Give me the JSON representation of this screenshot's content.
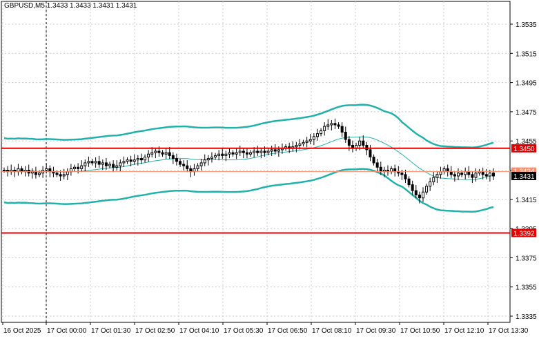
{
  "header": {
    "symbol": "GBPUSD,M5",
    "ohlc": "1.3433 1.3433 1.3431 1.3431"
  },
  "colors": {
    "background": "#ffffff",
    "grid": "#c8c8c8",
    "candle": "#000000",
    "bollinger": "#20b2aa",
    "level_line": "#e00000",
    "bid_line": "#ff8c69",
    "label_text": "#ffffff",
    "current_label_bg": "#000000"
  },
  "chart_data": {
    "type": "candlestick",
    "title": "GBPUSD,M5",
    "y_range": [
      1.333,
      1.355
    ],
    "y_ticks": [
      "1.3535",
      "1.3515",
      "1.3495",
      "1.3475",
      "1.3455",
      "1.3435",
      "1.3415",
      "1.3395",
      "1.3375",
      "1.3355",
      "1.3335"
    ],
    "x_ticks": [
      "16 Oct 2025",
      "17 Oct 00:00",
      "17 Oct 01:30",
      "17 Oct 02:50",
      "17 Oct 04:10",
      "17 Oct 05:30",
      "17 Oct 06:50",
      "17 Oct 08:10",
      "17 Oct 09:30",
      "17 Oct 10:50",
      "17 Oct 12:10",
      "17 Oct 13:30"
    ],
    "period_separator": "17 Oct 00:00",
    "grid": true,
    "levels": [
      {
        "label": "1.3450",
        "value": 1.345
      },
      {
        "label": "1.3392",
        "value": 1.3392
      }
    ],
    "bid_line": {
      "label": "1.3434",
      "value": 1.3434
    },
    "current_price": {
      "label": "1.3431",
      "value": 1.3431
    },
    "close": [
      1.3435,
      1.3434,
      1.3435,
      1.3434,
      1.3436,
      1.3434,
      1.3435,
      1.3433,
      1.3434,
      1.3432,
      1.3433,
      1.3435,
      1.3436,
      1.3434,
      1.3433,
      1.3432,
      1.3431,
      1.3432,
      1.3434,
      1.3436,
      1.3437,
      1.3436,
      1.3438,
      1.344,
      1.3441,
      1.344,
      1.3441,
      1.3439,
      1.344,
      1.3438,
      1.3439,
      1.3437,
      1.3438,
      1.344,
      1.3441,
      1.3442,
      1.3441,
      1.3442,
      1.3443,
      1.3442,
      1.3444,
      1.3446,
      1.3447,
      1.3448,
      1.3447,
      1.3446,
      1.3447,
      1.3445,
      1.3443,
      1.3441,
      1.3439,
      1.3438,
      1.3436,
      1.3434,
      1.3436,
      1.3438,
      1.344,
      1.3442,
      1.3443,
      1.3444,
      1.3445,
      1.3446,
      1.3445,
      1.3446,
      1.3447,
      1.3446,
      1.3447,
      1.3448,
      1.3447,
      1.3446,
      1.3447,
      1.3448,
      1.3447,
      1.3448,
      1.3447,
      1.3448,
      1.3449,
      1.3448,
      1.3449,
      1.345,
      1.3451,
      1.345,
      1.3451,
      1.3452,
      1.3453,
      1.3454,
      1.3455,
      1.3456,
      1.3458,
      1.346,
      1.3462,
      1.3465,
      1.3466,
      1.3467,
      1.3466,
      1.3465,
      1.3461,
      1.3456,
      1.3452,
      1.345,
      1.3452,
      1.3455,
      1.3452,
      1.3449,
      1.3444,
      1.344,
      1.3437,
      1.3434,
      1.3435,
      1.3434,
      1.3436,
      1.3434,
      1.3433,
      1.3432,
      1.3429,
      1.3425,
      1.3421,
      1.3418,
      1.3416,
      1.342,
      1.3424,
      1.3427,
      1.343,
      1.3432,
      1.3434,
      1.3436,
      1.3434,
      1.3432,
      1.3431,
      1.3433,
      1.3432,
      1.3434,
      1.3432,
      1.343,
      1.3433,
      1.3434,
      1.3432,
      1.3431,
      1.3433,
      1.3431
    ],
    "bollinger": {
      "period": 20,
      "deviations": 2
    }
  }
}
